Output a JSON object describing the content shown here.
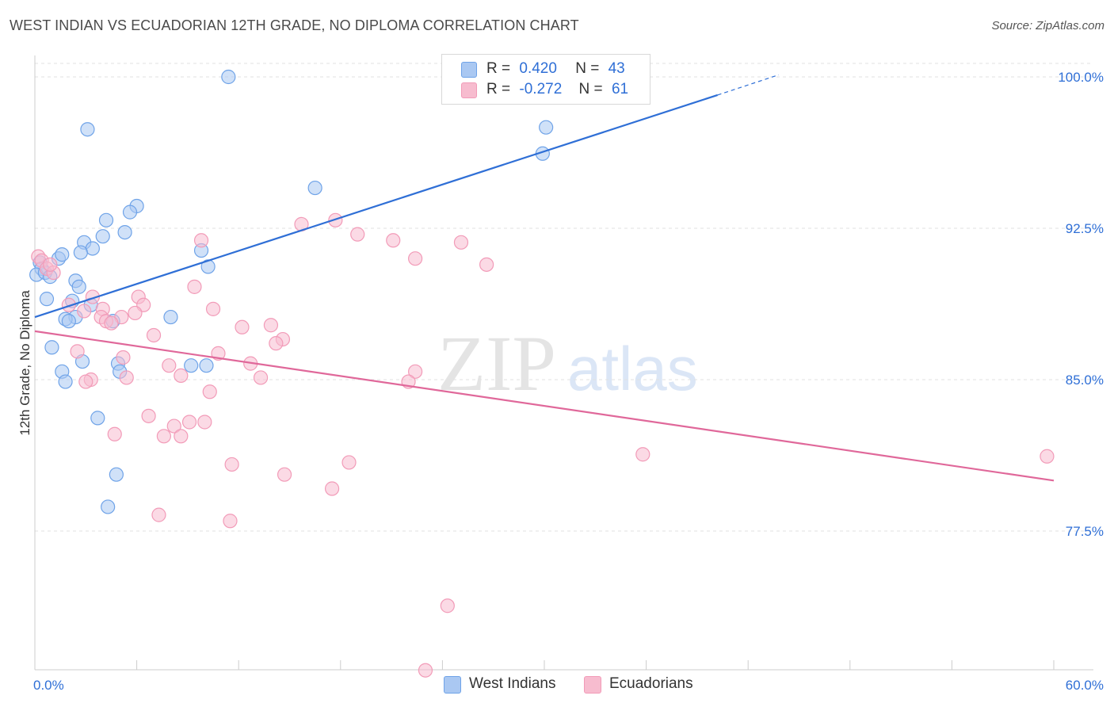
{
  "title": "WEST INDIAN VS ECUADORIAN 12TH GRADE, NO DIPLOMA CORRELATION CHART",
  "source": "Source: ZipAtlas.com",
  "watermark": {
    "zip": "ZIP",
    "atlas": "atlas"
  },
  "legend_stats": [
    {
      "r_label": "R =",
      "r_value": "0.420",
      "n_label": "N =",
      "n_value": "43",
      "color": "#6fa3e8"
    },
    {
      "r_label": "R =",
      "r_value": "-0.272",
      "n_label": "N =",
      "n_value": "61",
      "color": "#f29bb8"
    }
  ],
  "colors": {
    "west_indian_fill": "#aac8f2",
    "west_indian_stroke": "#6fa3e8",
    "west_indian_line": "#2f6fd6",
    "ecuadorian_fill": "#f7bccf",
    "ecuadorian_stroke": "#f29bb8",
    "ecuadorian_line": "#e0689a",
    "tick_label": "#2f6fd6",
    "grid": "#e2e2e2"
  },
  "chart_data": {
    "type": "scatter",
    "title": "WEST INDIAN VS ECUADORIAN 12TH GRADE, NO DIPLOMA CORRELATION CHART",
    "xlabel": "",
    "ylabel": "12th Grade, No Diploma",
    "xlim": [
      0,
      60
    ],
    "ylim": [
      70.5,
      100.8
    ],
    "x_tick_labels": [
      "0.0%",
      "60.0%"
    ],
    "y_ticks": [
      77.5,
      85.0,
      92.5,
      100.0
    ],
    "y_tick_labels": [
      "77.5%",
      "85.0%",
      "92.5%",
      "100.0%"
    ],
    "grid": "horizontal dashed",
    "legend": "bottom-center",
    "series": [
      {
        "name": "West Indians",
        "r": 0.42,
        "n": 43,
        "trend": {
          "x0": 0,
          "y0": 88.1,
          "x1": 40.2,
          "y1": 99.1,
          "dash_x1": 43.8,
          "dash_y1": 100.1
        },
        "points": [
          [
            11.4,
            100.0
          ],
          [
            3.1,
            97.4
          ],
          [
            30.1,
            97.5
          ],
          [
            29.9,
            96.2
          ],
          [
            16.5,
            94.5
          ],
          [
            6.0,
            93.6
          ],
          [
            5.6,
            93.3
          ],
          [
            4.2,
            92.9
          ],
          [
            5.3,
            92.3
          ],
          [
            4.0,
            92.1
          ],
          [
            2.9,
            91.8
          ],
          [
            3.4,
            91.5
          ],
          [
            2.7,
            91.3
          ],
          [
            9.8,
            91.4
          ],
          [
            1.4,
            91.0
          ],
          [
            1.6,
            91.2
          ],
          [
            0.3,
            90.8
          ],
          [
            0.4,
            90.5
          ],
          [
            10.2,
            90.6
          ],
          [
            0.1,
            90.2
          ],
          [
            0.6,
            90.3
          ],
          [
            0.9,
            90.1
          ],
          [
            2.4,
            89.9
          ],
          [
            2.6,
            89.6
          ],
          [
            0.7,
            89.0
          ],
          [
            2.2,
            88.9
          ],
          [
            3.3,
            88.7
          ],
          [
            2.4,
            88.1
          ],
          [
            1.8,
            88.0
          ],
          [
            2.0,
            87.9
          ],
          [
            4.6,
            87.9
          ],
          [
            8.0,
            88.1
          ],
          [
            1.0,
            86.6
          ],
          [
            2.8,
            85.9
          ],
          [
            4.9,
            85.8
          ],
          [
            9.2,
            85.7
          ],
          [
            10.1,
            85.7
          ],
          [
            5.0,
            85.4
          ],
          [
            1.6,
            85.4
          ],
          [
            1.8,
            84.9
          ],
          [
            3.7,
            83.1
          ],
          [
            4.8,
            80.3
          ],
          [
            4.3,
            78.7
          ]
        ]
      },
      {
        "name": "Ecuadorians",
        "r": -0.272,
        "n": 61,
        "trend": {
          "x0": 0,
          "y0": 87.4,
          "x1": 60,
          "y1": 80.0
        },
        "points": [
          [
            0.2,
            91.1
          ],
          [
            0.4,
            90.9
          ],
          [
            0.7,
            90.5
          ],
          [
            1.1,
            90.3
          ],
          [
            0.9,
            90.7
          ],
          [
            15.7,
            92.7
          ],
          [
            17.7,
            92.9
          ],
          [
            19.0,
            92.2
          ],
          [
            21.1,
            91.9
          ],
          [
            9.8,
            91.9
          ],
          [
            25.1,
            91.8
          ],
          [
            22.4,
            91.0
          ],
          [
            26.6,
            90.7
          ],
          [
            9.4,
            89.6
          ],
          [
            6.1,
            89.1
          ],
          [
            3.4,
            89.1
          ],
          [
            6.4,
            88.7
          ],
          [
            2.0,
            88.7
          ],
          [
            2.9,
            88.4
          ],
          [
            4.0,
            88.5
          ],
          [
            10.5,
            88.5
          ],
          [
            5.9,
            88.3
          ],
          [
            3.9,
            88.1
          ],
          [
            5.1,
            88.1
          ],
          [
            4.2,
            87.9
          ],
          [
            4.5,
            87.8
          ],
          [
            12.2,
            87.6
          ],
          [
            13.9,
            87.7
          ],
          [
            7.0,
            87.2
          ],
          [
            14.6,
            87.0
          ],
          [
            14.2,
            86.8
          ],
          [
            2.5,
            86.4
          ],
          [
            10.8,
            86.3
          ],
          [
            5.2,
            86.1
          ],
          [
            7.9,
            85.7
          ],
          [
            12.7,
            85.8
          ],
          [
            8.6,
            85.2
          ],
          [
            13.3,
            85.1
          ],
          [
            5.4,
            85.1
          ],
          [
            3.3,
            85.0
          ],
          [
            3.0,
            84.9
          ],
          [
            22.4,
            85.4
          ],
          [
            22.0,
            84.9
          ],
          [
            10.3,
            84.4
          ],
          [
            6.7,
            83.2
          ],
          [
            9.1,
            82.9
          ],
          [
            10.0,
            82.9
          ],
          [
            8.2,
            82.7
          ],
          [
            4.7,
            82.3
          ],
          [
            7.6,
            82.2
          ],
          [
            8.6,
            82.2
          ],
          [
            35.8,
            81.3
          ],
          [
            59.6,
            81.2
          ],
          [
            18.5,
            80.9
          ],
          [
            11.6,
            80.8
          ],
          [
            14.7,
            80.3
          ],
          [
            17.5,
            79.6
          ],
          [
            7.3,
            78.3
          ],
          [
            11.5,
            78.0
          ],
          [
            24.3,
            73.8
          ],
          [
            23.0,
            70.6
          ]
        ]
      }
    ]
  }
}
